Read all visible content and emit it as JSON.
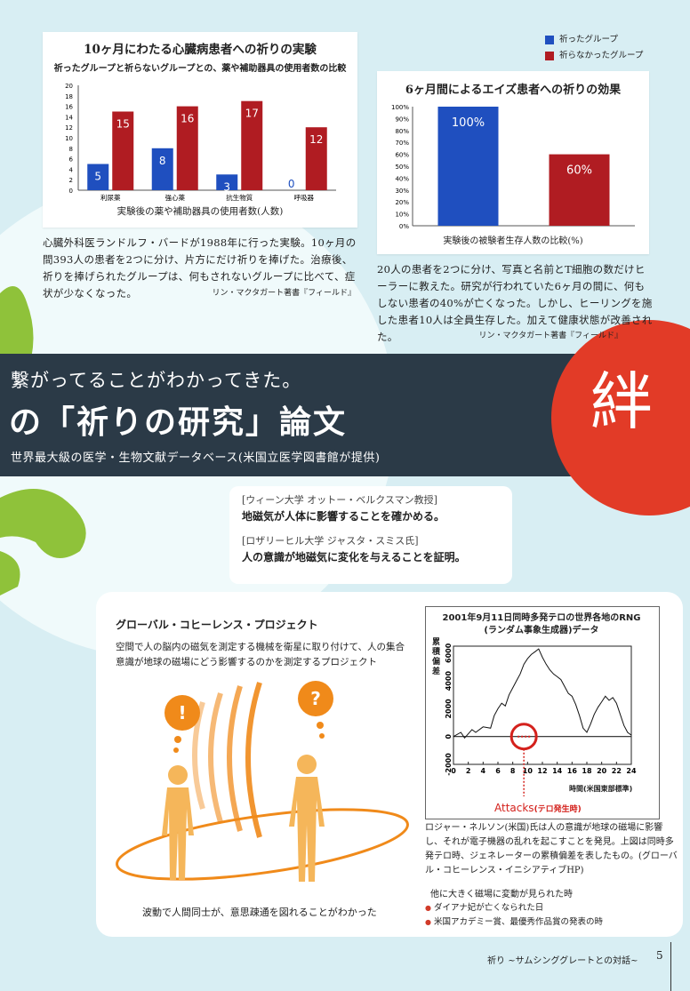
{
  "chart1": {
    "title": "10ヶ月にわたる心臓病患者への祈りの実験",
    "subtitle": "祈ったグループと祈らないグループとの、薬や補助器具の使用者数の比較",
    "xlabel": "実験後の薬や補助器具の使用者数(人数)",
    "caption": "心臓外科医ランドルフ・バードが1988年に行った実験。10ヶ月の間393人の患者を2つに分け、片方にだけ祈りを捧げた。治療後、祈りを捧げられたグループは、何もされないグループに比べて、症状が少なくなった。",
    "source": "リン・マクタガート著書『フィールド』"
  },
  "legend": [
    {
      "label": "祈ったグループ",
      "color": "#1f4fbf"
    },
    {
      "label": "祈らなかったグループ",
      "color": "#b01c22"
    }
  ],
  "chart2": {
    "title": "6ヶ月間によるエイズ患者への祈りの効果",
    "xlabel": "実験後の被験者生存人数の比較(%)",
    "caption": "20人の患者を2つに分け、写真と名前とT細胞の数だけヒーラーに教えた。研究が行われていた6ヶ月の間に、何もしない患者の40%が亡くなった。しかし、ヒーリングを施した患者10人は全員生存した。加えて健康状態が改善された。",
    "source": "リン・マクタガート著書『フィールド』"
  },
  "chart_data": [
    {
      "type": "bar",
      "categories": [
        "利尿薬",
        "強心薬",
        "抗生物質",
        "呼吸器"
      ],
      "series": [
        {
          "name": "祈ったグループ",
          "values": [
            5,
            8,
            3,
            0
          ],
          "color": "#1f4fbf"
        },
        {
          "name": "祈らなかったグループ",
          "values": [
            15,
            16,
            17,
            12
          ],
          "color": "#b01c22"
        }
      ],
      "ylim": [
        0,
        20
      ],
      "yticks": [
        "0",
        "2",
        "4",
        "6",
        "8",
        "10",
        "12",
        "14",
        "16",
        "18",
        "20"
      ],
      "grid": false
    },
    {
      "type": "bar",
      "categories": [
        "祈ったグループ",
        "祈らなかったグループ"
      ],
      "values": [
        100,
        60
      ],
      "data_labels": [
        "100%",
        "60%"
      ],
      "colors": [
        "#1f4fbf",
        "#b01c22"
      ],
      "ylim": [
        0,
        100
      ],
      "yticks": [
        "0%",
        "10%",
        "20%",
        "30%",
        "40%",
        "50%",
        "60%",
        "70%",
        "80%",
        "90%",
        "100%"
      ],
      "grid": false
    },
    {
      "type": "line",
      "title": "2001年9月11日同時多発テロの世界各地のRNG",
      "subtitle": "(ランダム事象生成器)データ",
      "ylabel": "累積偏差",
      "xlabel": "時間(米国東部標準)",
      "xlim": [
        0,
        24
      ],
      "ylim": [
        -2000,
        6500
      ],
      "xticks": [
        "0",
        "2",
        "4",
        "6",
        "8",
        "10",
        "12",
        "14",
        "16",
        "18",
        "20",
        "22",
        "24"
      ],
      "yticks": [
        "-2000",
        "0",
        "2000",
        "4000",
        "6000"
      ],
      "series": [
        {
          "x": [
            0,
            1,
            1.5,
            2,
            2.5,
            3,
            4,
            5,
            5.5,
            6,
            6.5,
            7,
            7.5,
            8,
            8.5,
            9,
            9.5,
            10,
            10.5,
            11,
            11.5,
            12,
            12.5,
            13,
            13.5,
            14,
            14.5,
            15,
            15.5,
            16,
            16.5,
            17,
            17.5,
            18,
            18.5,
            19,
            19.5,
            20,
            20.5,
            21,
            21.5,
            22,
            22.5,
            23,
            23.5,
            24
          ],
          "y": [
            0,
            300,
            -100,
            200,
            500,
            300,
            700,
            600,
            1500,
            2000,
            2400,
            2200,
            3000,
            3500,
            4000,
            4500,
            5200,
            5600,
            5900,
            6100,
            6300,
            5700,
            5200,
            4800,
            4500,
            4300,
            4100,
            3600,
            3100,
            2900,
            2300,
            1500,
            600,
            300,
            900,
            1600,
            2100,
            2500,
            2900,
            2600,
            2800,
            2400,
            1600,
            800,
            300,
            100
          ]
        }
      ],
      "annotation": "Attacks",
      "annotation_sub": "(テロ発生時)"
    }
  ],
  "banner": {
    "line1": "繋がってることがわかってきた。",
    "title": "の「祈りの研究」論文",
    "subtitle": "世界最大級の医学・生物文献データベース(米国立医学図書館が提供)",
    "kanji": "絆"
  },
  "bubble": {
    "item1_head": "[ウィーン大学 オットー・ベルクスマン教授]",
    "item1_body": "地磁気が人体に影響することを確かめる。",
    "item2_head": "[ロザリーヒル大学 ジャスタ・スミス氏]",
    "item2_body": "人の意識が地磁気に変化を与えることを証明。"
  },
  "gcp": {
    "title": "グローバル・コヒーレンス・プロジェクト",
    "description": "空間で人の脳内の磁気を測定する機械を衛星に取り付けて、人の集合意識が地球の磁場にどう影響するのかを測定するプロジェクト",
    "symbol_left": "!",
    "symbol_right": "?",
    "caption": "波動で人間同士が、意思疎通を図れることがわかった",
    "rng_caption": "ロジャー・ネルソン(米国)氏は人の意識が地球の磁場に影響し、それが電子機器の乱れを起こすことを発見。上図は同時多発テロ時、ジェネレーターの累積偏差を表したもの。(グローバル・コヒーレンス・イニシアティブHP)",
    "events_title": "他に大きく磁場に変動が見られた時",
    "events": [
      "ダイアナ妃が亡くなられた日",
      "米国アカデミー賞、最優秀作品賞の発表の時"
    ]
  },
  "footer": {
    "title": "祈り",
    "subtitle": "~サムシンググレートとの対話~",
    "page": "5"
  }
}
